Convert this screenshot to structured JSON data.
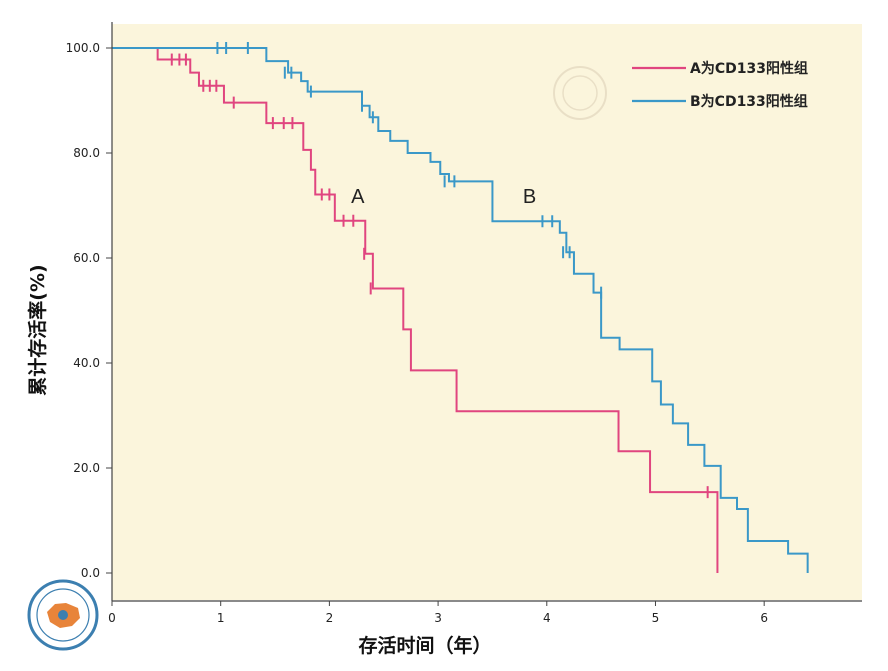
{
  "chart_data": {
    "type": "line",
    "subtype": "kaplan-meier",
    "title": "",
    "xlabel": "存活时间（年）",
    "ylabel": "累计存活率(%)",
    "xlim": [
      0,
      6.9
    ],
    "ylim": [
      0,
      100
    ],
    "x_ticks": [
      "0",
      "1",
      "2",
      "3",
      "4",
      "5",
      "6"
    ],
    "y_ticks": [
      "0.0",
      "20.0",
      "40.0",
      "60.0",
      "80.0",
      "100.0"
    ],
    "grid": false,
    "background": "#fbf5dc",
    "legend_position": "top-right",
    "series": [
      {
        "name": "A为CD133阳性组",
        "label": "A",
        "label_at": [
          2.2,
          70.5
        ],
        "color": "#e0457f",
        "steps": [
          [
            0,
            100
          ],
          [
            0.42,
            97.8
          ],
          [
            0.72,
            95.3
          ],
          [
            0.8,
            92.8
          ],
          [
            1.03,
            89.6
          ],
          [
            1.42,
            85.7
          ],
          [
            1.76,
            80.6
          ],
          [
            1.83,
            76.8
          ],
          [
            1.87,
            72.1
          ],
          [
            2.05,
            67.1
          ],
          [
            2.33,
            60.8
          ],
          [
            2.4,
            54.2
          ],
          [
            2.68,
            46.4
          ],
          [
            2.75,
            38.6
          ],
          [
            3.17,
            30.8
          ],
          [
            4.66,
            23.2
          ],
          [
            4.95,
            15.4
          ],
          [
            5.57,
            0
          ]
        ],
        "end_x": 5.57,
        "censored": [
          [
            0.55,
            97.8
          ],
          [
            0.62,
            97.8
          ],
          [
            0.68,
            97.8
          ],
          [
            0.84,
            92.8
          ],
          [
            0.9,
            92.8
          ],
          [
            0.96,
            92.8
          ],
          [
            1.12,
            89.6
          ],
          [
            1.48,
            85.7
          ],
          [
            1.58,
            85.7
          ],
          [
            1.66,
            85.7
          ],
          [
            1.93,
            72.1
          ],
          [
            2.0,
            72.1
          ],
          [
            2.13,
            67.1
          ],
          [
            2.22,
            67.1
          ],
          [
            2.32,
            60.8
          ],
          [
            2.38,
            54.2
          ],
          [
            5.48,
            15.4
          ]
        ]
      },
      {
        "name": "B为CD133阳性组",
        "label": "B",
        "label_at": [
          3.78,
          70.5
        ],
        "color": "#3a98c8",
        "steps": [
          [
            0,
            100
          ],
          [
            1.42,
            97.5
          ],
          [
            1.62,
            95.3
          ],
          [
            1.74,
            93.7
          ],
          [
            1.8,
            91.7
          ],
          [
            2.3,
            89
          ],
          [
            2.37,
            86.8
          ],
          [
            2.45,
            84.2
          ],
          [
            2.56,
            82.3
          ],
          [
            2.72,
            80
          ],
          [
            2.93,
            78.3
          ],
          [
            3.02,
            76
          ],
          [
            3.1,
            74.6
          ],
          [
            3.5,
            67
          ],
          [
            4.12,
            64.8
          ],
          [
            4.18,
            61.1
          ],
          [
            4.25,
            57
          ],
          [
            4.43,
            53.4
          ],
          [
            4.5,
            44.8
          ],
          [
            4.67,
            42.6
          ],
          [
            4.97,
            36.5
          ],
          [
            5.05,
            32.1
          ],
          [
            5.16,
            28.5
          ],
          [
            5.3,
            24.4
          ],
          [
            5.45,
            20.4
          ],
          [
            5.6,
            14.3
          ],
          [
            5.75,
            12.2
          ],
          [
            5.85,
            6.1
          ],
          [
            6.22,
            3.7
          ],
          [
            6.4,
            0
          ]
        ],
        "end_x": 6.4,
        "censored": [
          [
            0.97,
            100
          ],
          [
            1.05,
            100
          ],
          [
            1.25,
            100
          ],
          [
            1.59,
            95.3
          ],
          [
            1.65,
            95.3
          ],
          [
            1.83,
            91.7
          ],
          [
            2.3,
            89
          ],
          [
            2.4,
            86.8
          ],
          [
            3.06,
            74.6
          ],
          [
            3.15,
            74.6
          ],
          [
            3.96,
            67
          ],
          [
            4.05,
            67
          ],
          [
            4.15,
            61.1
          ],
          [
            4.21,
            61.1
          ],
          [
            4.5,
            53.4
          ]
        ]
      }
    ]
  }
}
